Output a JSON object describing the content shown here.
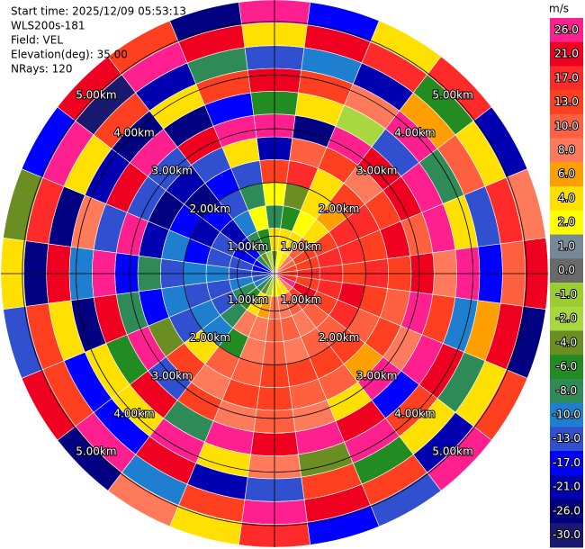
{
  "chart_data": {
    "type": "ppi",
    "info": [
      "Start time: 2025/12/09 05:53:13",
      "WLS200s-181",
      "Field: VEL",
      "Elevation(deg): 35.00",
      "NRays: 120"
    ],
    "unit": "m/s",
    "rlim": [
      0.3,
      5.4
    ],
    "rings": [
      {
        "value": 1,
        "label": "1.00km"
      },
      {
        "value": 2,
        "label": "2.00km"
      },
      {
        "value": 3,
        "label": "3.00km"
      },
      {
        "value": 4,
        "label": "4.00km"
      },
      {
        "value": 5,
        "label": "5.00km"
      }
    ],
    "azimuths": [
      0,
      15,
      30,
      45,
      60,
      75,
      90,
      105,
      120,
      135,
      150,
      165,
      180,
      195,
      210,
      225,
      240,
      255,
      270,
      285,
      300,
      315,
      330,
      345
    ],
    "values": [
      [
        -4,
        4,
        -8,
        2,
        13,
        -21,
        26,
        -6,
        21,
        -13,
        4,
        26
      ],
      [
        2,
        4,
        -6,
        -4,
        17,
        10,
        -26,
        4,
        13,
        -10,
        21,
        -17
      ],
      [
        4,
        4,
        2,
        4,
        4,
        13,
        26,
        -2,
        8,
        -21,
        17,
        4
      ],
      [
        8,
        10,
        4,
        6,
        13,
        8,
        21,
        -13,
        26,
        6,
        -6,
        17
      ],
      [
        10,
        13,
        13,
        17,
        17,
        13,
        21,
        26,
        -8,
        10,
        4,
        -21
      ],
      [
        13,
        13,
        17,
        17,
        13,
        21,
        10,
        26,
        4,
        -13,
        17,
        8
      ],
      [
        13,
        17,
        17,
        13,
        17,
        13,
        21,
        8,
        26,
        -17,
        10,
        21
      ],
      [
        17,
        13,
        17,
        21,
        13,
        10,
        26,
        13,
        -10,
        6,
        21,
        -26
      ],
      [
        26,
        21,
        13,
        17,
        10,
        13,
        8,
        26,
        21,
        -8,
        4,
        13
      ],
      [
        8,
        13,
        10,
        10,
        13,
        6,
        26,
        -17,
        13,
        4,
        -21,
        26
      ],
      [
        4,
        10,
        8,
        10,
        13,
        10,
        4,
        21,
        26,
        -6,
        13,
        -13
      ],
      [
        4,
        8,
        10,
        8,
        13,
        10,
        8,
        26,
        -4,
        13,
        21,
        -17
      ],
      [
        2,
        8,
        10,
        10,
        13,
        13,
        10,
        21,
        8,
        -13,
        26,
        17
      ],
      [
        -2,
        6,
        8,
        8,
        10,
        13,
        8,
        26,
        4,
        -21,
        13,
        4
      ],
      [
        -4,
        4,
        8,
        -6,
        10,
        8,
        13,
        -8,
        26,
        21,
        -10,
        8
      ],
      [
        -8,
        -6,
        -8,
        -10,
        4,
        13,
        -13,
        21,
        4,
        -17,
        26,
        -26
      ],
      [
        -10,
        -8,
        -13,
        -10,
        -13,
        -4,
        26,
        -6,
        4,
        -17,
        13,
        21
      ],
      [
        -13,
        -10,
        -13,
        -13,
        -10,
        -17,
        -8,
        21,
        -26,
        4,
        13,
        -13
      ],
      [
        -13,
        -13,
        -10,
        -10,
        -13,
        -8,
        -17,
        26,
        -10,
        21,
        -26,
        4
      ],
      [
        -17,
        -13,
        -13,
        -17,
        -10,
        -21,
        26,
        -13,
        8,
        -26,
        17,
        -4
      ],
      [
        -17,
        -17,
        -13,
        -21,
        -17,
        -26,
        -13,
        21,
        -21,
        4,
        26,
        -17
      ],
      [
        -8,
        -17,
        -21,
        -17,
        -26,
        -21,
        -13,
        26,
        -26,
        13,
        -30,
        21
      ],
      [
        -4,
        -8,
        -10,
        -13,
        -17,
        -13,
        21,
        -26,
        4,
        -21,
        26,
        13
      ],
      [
        -2,
        -6,
        2,
        -8,
        -13,
        4,
        26,
        -17,
        13,
        -8,
        21,
        -26
      ]
    ],
    "colorbar": {
      "levels": [
        {
          "value": 26,
          "label": "26.0"
        },
        {
          "value": 21,
          "label": "21.0"
        },
        {
          "value": 17,
          "label": "17.0"
        },
        {
          "value": 13,
          "label": "13.0"
        },
        {
          "value": 10,
          "label": "10.0"
        },
        {
          "value": 8,
          "label": "8.0"
        },
        {
          "value": 6,
          "label": "6.0"
        },
        {
          "value": 4,
          "label": "4.0"
        },
        {
          "value": 2,
          "label": "2.0"
        },
        {
          "value": 1,
          "label": "1.0"
        },
        {
          "value": 0,
          "label": "0.0"
        },
        {
          "value": -1,
          "label": "-1.0"
        },
        {
          "value": -2,
          "label": "-2.0"
        },
        {
          "value": -4,
          "label": "-4.0"
        },
        {
          "value": -6,
          "label": "-6.0"
        },
        {
          "value": -8,
          "label": "-8.0"
        },
        {
          "value": -10,
          "label": "-10.0"
        },
        {
          "value": -13,
          "label": "-13.0"
        },
        {
          "value": -17,
          "label": "-17.0"
        },
        {
          "value": -21,
          "label": "-21.0"
        },
        {
          "value": -26,
          "label": "-26.0"
        },
        {
          "value": -30,
          "label": "-30.0"
        }
      ],
      "colors": [
        "#ff1f8f",
        "#f00020",
        "#ff2a2a",
        "#ff4020",
        "#ff6040",
        "#ff7a5a",
        "#ffa000",
        "#ffe000",
        "#ffff00",
        "#778899",
        "#696969",
        "#9acd32",
        "#a8d840",
        "#6b8e23",
        "#228b22",
        "#2e8b57",
        "#1e7fd0",
        "#3050d0",
        "#0000ff",
        "#0000b0",
        "#000080",
        "#191970"
      ]
    }
  }
}
